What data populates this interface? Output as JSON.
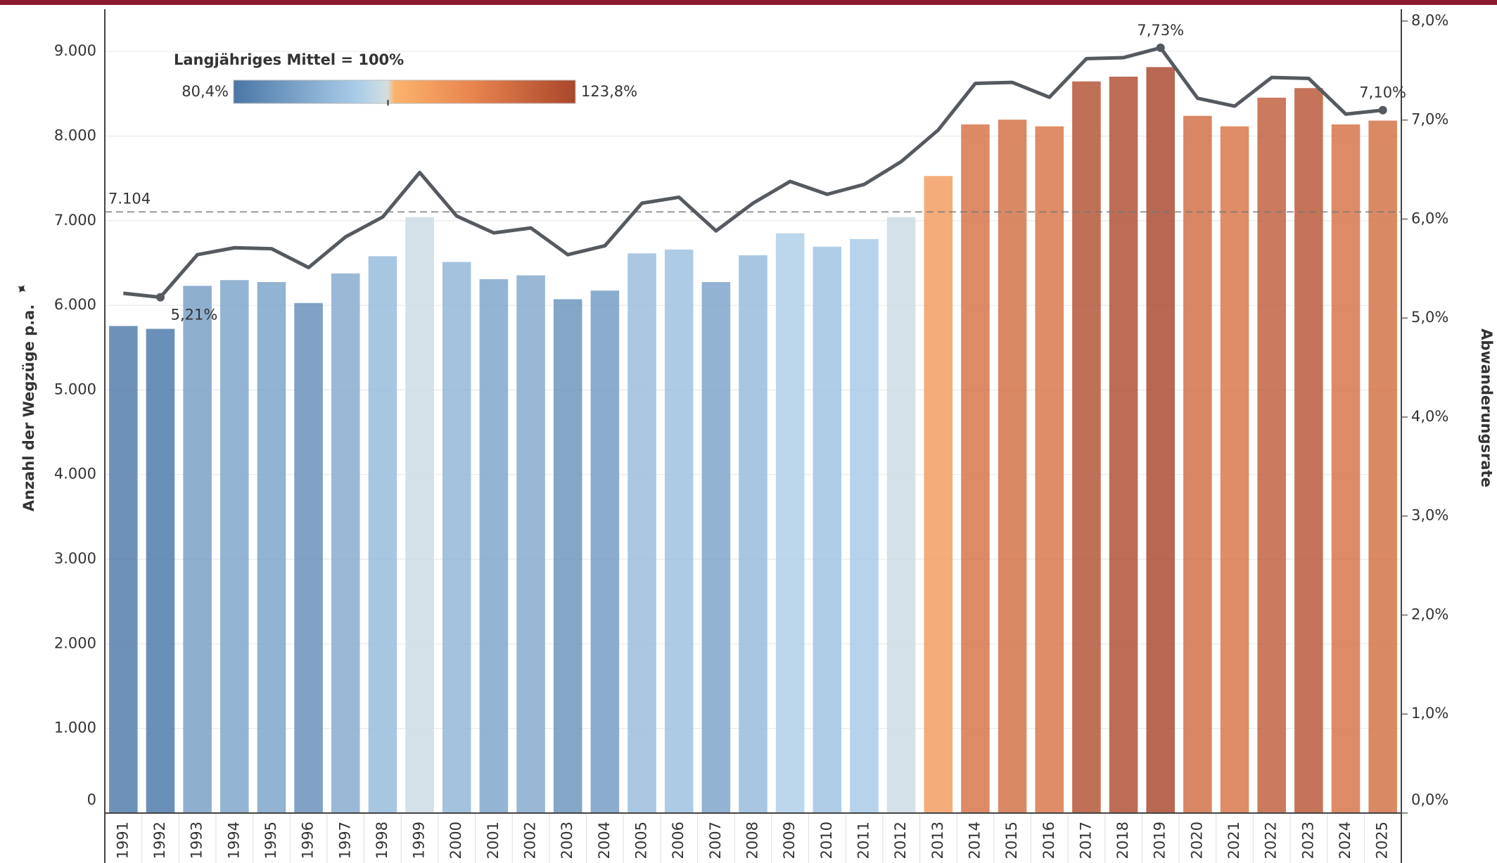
{
  "chart_data": {
    "type": "bar_line",
    "ylabel": "Anzahl der Wegzüge p.a.",
    "y2label": "Abwanderungsrate",
    "categories": [
      "1991",
      "1992",
      "1993",
      "1994",
      "1995",
      "1996",
      "1997",
      "1998",
      "1999",
      "2000",
      "2001",
      "2002",
      "2003",
      "2004",
      "2005",
      "2006",
      "2007",
      "2008",
      "2009",
      "2010",
      "2011",
      "2012",
      "2013",
      "2014",
      "2015",
      "2016",
      "2017",
      "2018",
      "2019",
      "2020",
      "2021",
      "2022",
      "2023",
      "2024",
      "2025"
    ],
    "series": [
      {
        "values": [
          5756,
          5722,
          6230,
          6298,
          6275,
          6027,
          6377,
          6580,
          7043,
          6512,
          6309,
          6354,
          6072,
          6174,
          6614,
          6659,
          6275,
          6591,
          6851,
          6693,
          6783,
          7043,
          7528,
          8138,
          8194,
          8115,
          8646,
          8702,
          8815,
          8239,
          8115,
          8454,
          8567,
          8138,
          8183
        ]
      },
      {
        "axis": "y2",
        "color": "#555a60",
        "values": [
          5.25,
          5.21,
          5.64,
          5.71,
          5.7,
          5.51,
          5.82,
          6.02,
          6.47,
          6.03,
          5.86,
          5.91,
          5.64,
          5.73,
          6.16,
          6.22,
          5.88,
          6.16,
          6.38,
          6.25,
          6.35,
          6.58,
          6.9,
          7.37,
          7.38,
          7.23,
          7.62,
          7.63,
          7.73,
          7.22,
          7.14,
          7.43,
          7.42,
          7.06,
          7.1
        ],
        "value_labels": [
          null,
          "5,21%",
          null,
          null,
          null,
          null,
          null,
          null,
          null,
          null,
          null,
          null,
          null,
          null,
          null,
          null,
          null,
          null,
          null,
          null,
          null,
          null,
          null,
          null,
          null,
          null,
          null,
          null,
          "7,73%",
          null,
          null,
          null,
          null,
          null,
          "7,10%"
        ]
      }
    ],
    "reference_line": {
      "value": 7104,
      "label": "7.104"
    },
    "legend": {
      "title": "Langjähriges Mittel = 100%",
      "min": {
        "value": 80.4,
        "label": "80,4%"
      },
      "max": {
        "value": 123.8,
        "label": "123,8%"
      },
      "colors": [
        "#4a76a6",
        "#a9cce8",
        "#d3dfe2",
        "#fbb46c",
        "#e8844f",
        "#a8472c"
      ]
    },
    "ylim": [
      0,
      9500
    ],
    "yticks": [
      0,
      {
        "value": 1000,
        "label": "1.000"
      },
      {
        "value": 2000,
        "label": "2.000"
      },
      {
        "value": 3000,
        "label": "3.000"
      },
      {
        "value": 4000,
        "label": "4.000"
      },
      {
        "value": 5000,
        "label": "5.000"
      },
      {
        "value": 6000,
        "label": "6.000"
      },
      {
        "value": 7000,
        "label": "7.000"
      },
      {
        "value": 8000,
        "label": "8.000"
      },
      {
        "value": 9000,
        "label": "9.000"
      }
    ],
    "y2lim": [
      0,
      8.12
    ],
    "y2ticks": [
      {
        "value": 0,
        "label": "0,0%"
      },
      {
        "value": 1,
        "label": "1,0%"
      },
      {
        "value": 2,
        "label": "2,0%"
      },
      {
        "value": 3,
        "label": "3,0%"
      },
      {
        "value": 4,
        "label": "4,0%"
      },
      {
        "value": 5,
        "label": "5,0%"
      },
      {
        "value": 6,
        "label": "6,0%"
      },
      {
        "value": 7,
        "label": "7,0%"
      },
      {
        "value": 8,
        "label": "8,0%"
      }
    ],
    "grid": true
  }
}
